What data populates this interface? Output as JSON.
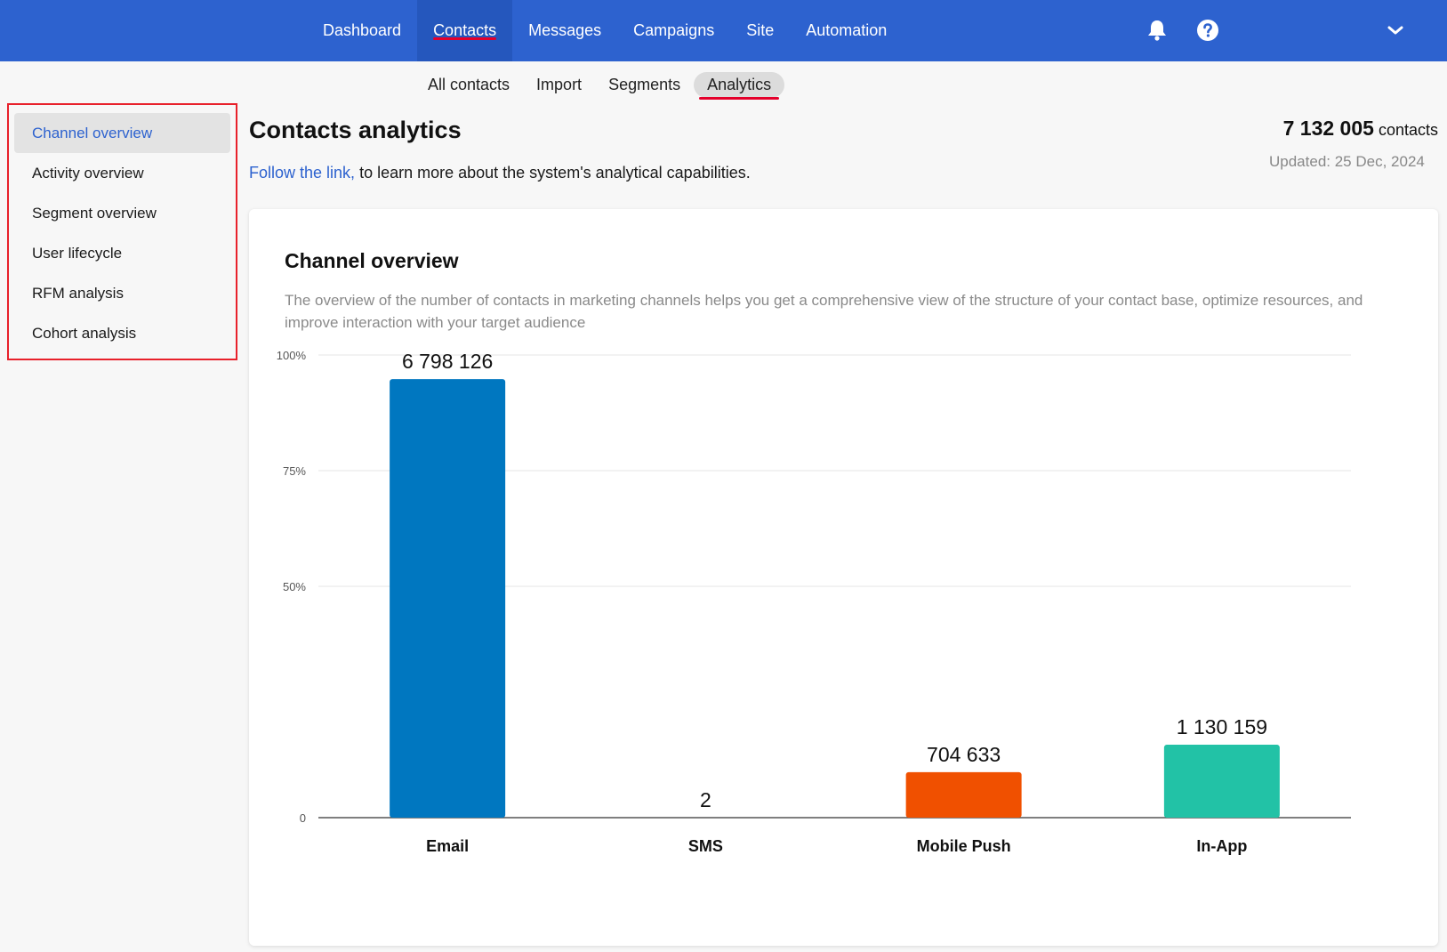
{
  "topnav": {
    "items": [
      {
        "label": "Dashboard",
        "active": false
      },
      {
        "label": "Contacts",
        "active": true
      },
      {
        "label": "Messages",
        "active": false
      },
      {
        "label": "Campaigns",
        "active": false
      },
      {
        "label": "Site",
        "active": false
      },
      {
        "label": "Automation",
        "active": false
      }
    ],
    "icons": [
      "bell-icon",
      "help-icon",
      "chevron-down-icon"
    ]
  },
  "subnav": {
    "items": [
      {
        "label": "All contacts",
        "active": false
      },
      {
        "label": "Import",
        "active": false
      },
      {
        "label": "Segments",
        "active": false
      },
      {
        "label": "Analytics",
        "active": true
      }
    ]
  },
  "sidebar": {
    "items": [
      {
        "label": "Channel overview",
        "active": true
      },
      {
        "label": "Activity overview",
        "active": false
      },
      {
        "label": "Segment overview",
        "active": false
      },
      {
        "label": "User lifecycle",
        "active": false
      },
      {
        "label": "RFM analysis",
        "active": false
      },
      {
        "label": "Cohort analysis",
        "active": false
      }
    ]
  },
  "header": {
    "title": "Contacts analytics",
    "intro_link": "Follow the link,",
    "intro_text": " to learn more about the system's analytical capabilities.",
    "total_value": "7 132 005",
    "total_unit": "contacts",
    "updated": "Updated: 25 Dec, 2024"
  },
  "card": {
    "title": "Channel overview",
    "description": "The overview of the number of contacts in marketing channels helps you get a comprehensive view of the structure of your contact base, optimize resources, and improve interaction with your target audience"
  },
  "colors": {
    "brand": "#2d62cf",
    "highlight": "#e8212b",
    "email": "#0077c0",
    "sms": "#7a7a7a",
    "mobile_push": "#f05000",
    "in_app": "#22c2a6"
  },
  "chart_data": {
    "type": "bar",
    "categories": [
      "Email",
      "SMS",
      "Mobile Push",
      "In-App"
    ],
    "values": [
      6798126,
      2,
      704633,
      1130159
    ],
    "value_labels": [
      "6 798 126",
      "2",
      "704 633",
      "1 130 159"
    ],
    "ytick_labels": [
      "0",
      "50%",
      "75%",
      "100%"
    ],
    "ylim": [
      0,
      1
    ],
    "grid": true,
    "bar_colors": [
      "#0077c0",
      "#7a7a7a",
      "#f05000",
      "#22c2a6"
    ]
  }
}
